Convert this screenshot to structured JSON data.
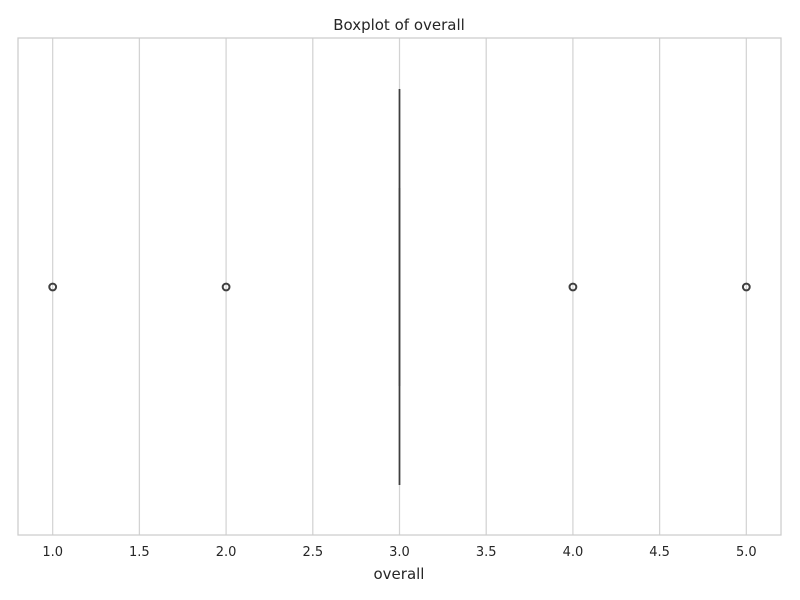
{
  "chart_data": {
    "type": "boxplot",
    "orientation": "horizontal",
    "title": "Boxplot of overall",
    "xlabel": "overall",
    "ylabel": "",
    "xlim": [
      0.8,
      5.2
    ],
    "xticks": [
      "1.0",
      "1.5",
      "2.0",
      "2.5",
      "3.0",
      "3.5",
      "4.0",
      "4.5",
      "5.0"
    ],
    "xtick_values": [
      1.0,
      1.5,
      2.0,
      2.5,
      3.0,
      3.5,
      4.0,
      4.5,
      5.0
    ],
    "grid": true,
    "box": {
      "whisker_low": 3.0,
      "q1": 3.0,
      "median": 3.0,
      "q3": 3.0,
      "whisker_high": 3.0
    },
    "outliers": [
      1.0,
      2.0,
      4.0,
      5.0
    ],
    "colors": {
      "grid": "#d3d3d3",
      "box_line": "#3f3f3f",
      "outlier_edge": "#3f3f3f",
      "spine": "#cccccc",
      "text": "#262626"
    }
  }
}
